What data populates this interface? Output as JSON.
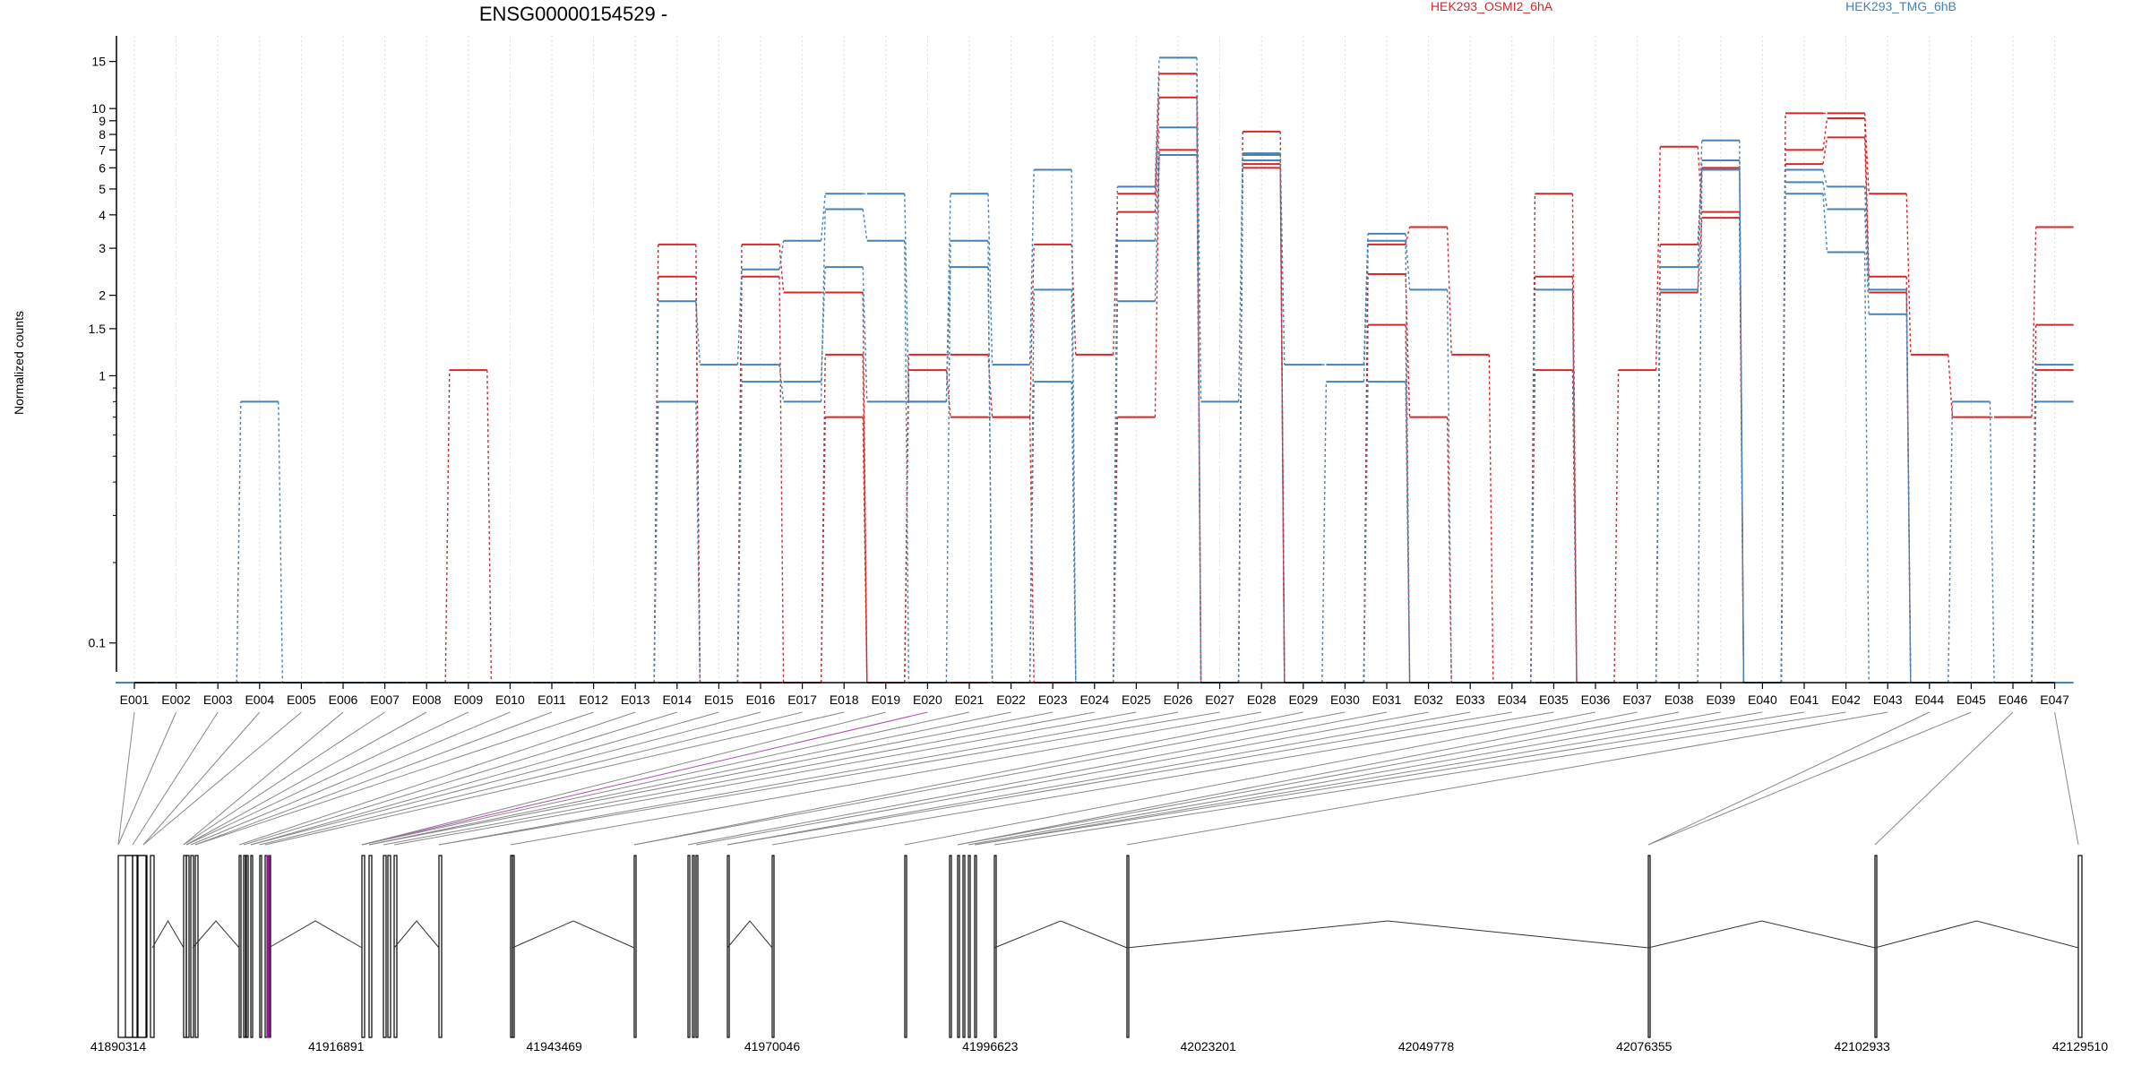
{
  "chart_data": {
    "type": "line",
    "title": "ENSG00000154529 -",
    "ylabel": "Normalized counts",
    "y_scale": "log",
    "ylim": [
      0.075,
      18
    ],
    "y_ticks": [
      0.1,
      1,
      1.5,
      2,
      3,
      4,
      5,
      6,
      7,
      8,
      9,
      10,
      15
    ],
    "y_tick_labels": [
      "0.1",
      "1",
      "1.5",
      "2",
      "3",
      "4",
      "5",
      "6",
      "7",
      "8",
      "9",
      "10",
      "15"
    ],
    "grid": "vertical dotted lines at each exon",
    "legend": "top, horizontal",
    "categories": [
      "E001",
      "E002",
      "E003",
      "E004",
      "E005",
      "E006",
      "E007",
      "E008",
      "E009",
      "E010",
      "E011",
      "E012",
      "E013",
      "E014",
      "E015",
      "E016",
      "E017",
      "E018",
      "E019",
      "E020",
      "E021",
      "E022",
      "E023",
      "E024",
      "E025",
      "E026",
      "E027",
      "E028",
      "E029",
      "E030",
      "E031",
      "E032",
      "E033",
      "E034",
      "E035",
      "E036",
      "E037",
      "E038",
      "E039",
      "E040",
      "E041",
      "E042",
      "E043",
      "E044",
      "E045",
      "E046",
      "E047"
    ],
    "series": [
      {
        "name": "HEK293_OSMI2_6hA",
        "color": "#d62728",
        "values": [
          0.07,
          0.07,
          0.07,
          0.07,
          0.07,
          0.07,
          0.07,
          0.07,
          1.05,
          0.07,
          0.07,
          0.07,
          0.07,
          3.1,
          0.07,
          3.1,
          2.05,
          2.05,
          0.07,
          1.05,
          0.7,
          0.7,
          3.1,
          1.2,
          4.8,
          13.5,
          0.07,
          8.2,
          0.07,
          0.07,
          3.1,
          3.6,
          1.2,
          0.07,
          4.8,
          0.07,
          1.05,
          7.2,
          4.1,
          0.07,
          9.6,
          9.6,
          4.8,
          1.2,
          0.7,
          0.7,
          3.6
        ]
      },
      {
        "name": "",
        "color": "#d62728",
        "values": [
          0.07,
          0.07,
          0.07,
          0.07,
          0.07,
          0.07,
          0.07,
          0.07,
          0.07,
          0.07,
          0.07,
          0.07,
          0.07,
          2.35,
          0.07,
          2.35,
          0.07,
          1.2,
          0.07,
          1.2,
          1.2,
          0.7,
          0.07,
          0.07,
          4.1,
          11.0,
          0.07,
          6.2,
          0.07,
          0.07,
          2.4,
          0.7,
          0.07,
          0.07,
          2.35,
          0.07,
          0.07,
          3.1,
          6.0,
          0.07,
          7.0,
          9.2,
          2.35,
          0.07,
          0.07,
          0.07,
          1.55
        ]
      },
      {
        "name": "",
        "color": "#d62728",
        "values": [
          0.07,
          0.07,
          0.07,
          0.07,
          0.07,
          0.07,
          0.07,
          0.07,
          0.07,
          0.07,
          0.07,
          0.07,
          0.07,
          0.07,
          0.07,
          0.07,
          0.07,
          0.7,
          0.07,
          0.07,
          0.07,
          0.07,
          0.07,
          0.07,
          0.7,
          7.0,
          0.07,
          6.0,
          0.07,
          0.07,
          1.55,
          0.07,
          0.07,
          0.07,
          1.05,
          0.07,
          0.07,
          2.05,
          3.9,
          0.07,
          6.2,
          7.8,
          2.05,
          0.07,
          0.07,
          0.07,
          1.05
        ]
      },
      {
        "name": "HEK293_TMG_6hB",
        "color": "#4682b4",
        "values": [
          0.07,
          0.07,
          0.07,
          0.8,
          0.07,
          0.07,
          0.07,
          0.07,
          0.07,
          0.07,
          0.07,
          0.07,
          0.07,
          1.9,
          1.1,
          2.5,
          3.2,
          4.8,
          4.8,
          0.8,
          4.8,
          1.1,
          5.9,
          0.07,
          5.1,
          15.5,
          0.8,
          6.8,
          1.1,
          1.1,
          3.4,
          2.1,
          0.07,
          0.07,
          2.1,
          0.07,
          0.07,
          2.55,
          7.6,
          0.07,
          5.9,
          5.1,
          2.1,
          0.07,
          0.8,
          0.07,
          1.1
        ]
      },
      {
        "name": "",
        "color": "#4682b4",
        "values": [
          0.07,
          0.07,
          0.07,
          0.07,
          0.07,
          0.07,
          0.07,
          0.07,
          0.07,
          0.07,
          0.07,
          0.07,
          0.07,
          0.8,
          0.07,
          1.1,
          0.8,
          4.2,
          3.2,
          0.07,
          3.2,
          0.07,
          2.1,
          0.07,
          3.2,
          8.5,
          0.07,
          6.7,
          0.07,
          0.95,
          3.2,
          0.07,
          0.07,
          0.07,
          0.07,
          0.07,
          0.07,
          2.1,
          6.4,
          0.07,
          5.3,
          4.2,
          1.7,
          0.07,
          0.07,
          0.07,
          0.8
        ]
      },
      {
        "name": "",
        "color": "#4682b4",
        "values": [
          0.07,
          0.07,
          0.07,
          0.07,
          0.07,
          0.07,
          0.07,
          0.07,
          0.07,
          0.07,
          0.07,
          0.07,
          0.07,
          0.07,
          0.07,
          0.95,
          0.95,
          2.55,
          0.8,
          0.8,
          2.55,
          0.07,
          0.95,
          0.07,
          1.9,
          6.7,
          0.07,
          6.4,
          0.07,
          0.07,
          0.95,
          0.07,
          0.07,
          0.07,
          0.07,
          0.07,
          0.07,
          0.07,
          5.9,
          0.07,
          4.8,
          2.9,
          0.07,
          0.07,
          0.07,
          0.07,
          0.07
        ]
      }
    ],
    "genomic_axis": {
      "tick_labels": [
        "41890314",
        "41916891",
        "41943469",
        "41970046",
        "41996623",
        "42023201",
        "42049778",
        "42076355",
        "42102933",
        "42129510"
      ]
    }
  }
}
